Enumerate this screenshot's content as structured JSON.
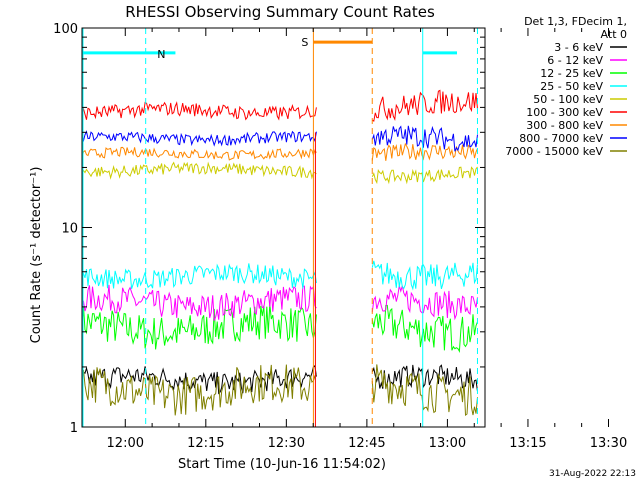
{
  "chart_data": {
    "type": "line",
    "title": "RHESSI Observing Summary Count Rates",
    "xlabel": "Start Time (10-Jun-16 11:54:02)",
    "ylabel": "Count Rate (s⁻¹ detector⁻¹)",
    "y_scale": "log",
    "ylim": [
      1,
      100
    ],
    "xlim_minutes": [
      -4.03,
      33.5
    ],
    "x_ticks": [
      {
        "label": "12:00",
        "value": 0
      },
      {
        "label": "12:15",
        "value": 15
      },
      {
        "label": "12:30",
        "value": 30
      },
      {
        "label": "12:45",
        "value": 45
      },
      {
        "label": "13:00",
        "value": 60
      },
      {
        "label": "13:15",
        "value": 75
      },
      {
        "label": "13:30",
        "value": 90
      }
    ],
    "y_ticks": [
      {
        "label": "1",
        "value": 1
      },
      {
        "label": "10",
        "value": 10
      },
      {
        "label": "100",
        "value": 100
      }
    ],
    "legend_header": [
      "Det 1,3, FDecim 1,",
      "Att 0"
    ],
    "legend_placement": "right",
    "series": [
      {
        "name": "3 - 6 keV",
        "color": "#000000",
        "seg1": [
          1.5,
          2.0
        ],
        "seg2": [
          1.5,
          2.0
        ]
      },
      {
        "name": "6 - 12 keV",
        "color": "#ff00ff",
        "seg1": [
          3.5,
          5.0
        ],
        "seg2": [
          3.5,
          5.0
        ]
      },
      {
        "name": "12 - 25 keV",
        "color": "#00ff00",
        "seg1": [
          2.5,
          4.0
        ],
        "seg2": [
          2.5,
          4.0
        ]
      },
      {
        "name": "25 - 50 keV",
        "color": "#00ffff",
        "seg1": [
          5.0,
          6.5
        ],
        "seg2": [
          5.0,
          7.0
        ]
      },
      {
        "name": "50 - 100 keV",
        "color": "#cccc00",
        "seg1": [
          18,
          21
        ],
        "seg2": [
          17,
          20
        ]
      },
      {
        "name": "100 - 300 keV",
        "color": "#ff0000",
        "seg1": [
          35,
          42
        ],
        "seg2": [
          35,
          48
        ]
      },
      {
        "name": "300 - 800 keV",
        "color": "#ff8800",
        "seg1": [
          22,
          25
        ],
        "seg2": [
          21,
          26
        ]
      },
      {
        "name": "800 - 7000 keV",
        "color": "#0000ff",
        "seg1": [
          26,
          30
        ],
        "seg2": [
          24,
          32
        ]
      },
      {
        "name": "7000 - 15000 keV",
        "color": "#808000",
        "seg1": [
          1.2,
          2.0
        ],
        "seg2": [
          1.2,
          2.0
        ]
      }
    ],
    "annotations": [
      {
        "label": "N",
        "color": "#00ffff"
      },
      {
        "label": "S",
        "color": "#ff8800"
      }
    ],
    "footer_date": "31-Aug-2022 22:13"
  }
}
